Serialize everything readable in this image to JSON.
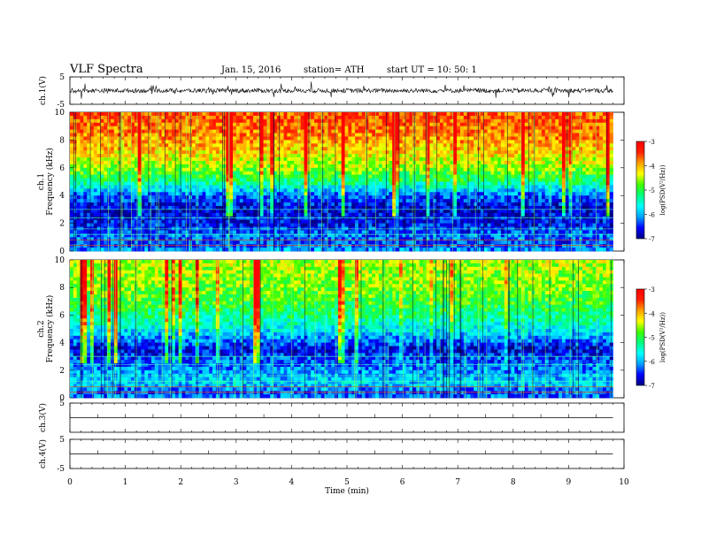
{
  "header": {
    "title": "VLF Spectra",
    "date": "Jan. 15, 2016",
    "station": "station= ATH",
    "start": "start  UT =   10: 50: 1"
  },
  "chart_data": [
    {
      "type": "line",
      "panel": "ch1-waveform",
      "ylabel": "ch.1(V)",
      "ylim": [
        -5,
        5
      ],
      "yticks": [
        -5,
        5
      ],
      "xlim": [
        0,
        10
      ],
      "trace_level": 0,
      "data_end": 9.8
    },
    {
      "type": "heatmap",
      "panel": "ch1-spectrogram",
      "ylabel": "Frequency  (kHz)",
      "ylabel_channel": "ch.1",
      "ylim": [
        0,
        10
      ],
      "yticks": [
        0,
        2,
        4,
        6,
        8,
        10
      ],
      "xlim": [
        0,
        10
      ],
      "data_end": 9.8,
      "profile": [
        {
          "f": 0.0,
          "v": -6.0
        },
        {
          "f": 0.5,
          "v": -6.4
        },
        {
          "f": 1.0,
          "v": -6.2
        },
        {
          "f": 2.0,
          "v": -6.6
        },
        {
          "f": 3.0,
          "v": -6.7
        },
        {
          "f": 4.0,
          "v": -6.3
        },
        {
          "f": 5.0,
          "v": -5.2
        },
        {
          "f": 6.0,
          "v": -4.6
        },
        {
          "f": 7.0,
          "v": -4.2
        },
        {
          "f": 8.0,
          "v": -3.9
        },
        {
          "f": 9.0,
          "v": -3.7
        },
        {
          "f": 10.0,
          "v": -3.6
        }
      ],
      "colorbar": {
        "label": "log(PSD(V²/Hz))",
        "ticks": [
          -3,
          -4,
          -5,
          -6,
          -7
        ],
        "min": -7,
        "max": -3
      }
    },
    {
      "type": "heatmap",
      "panel": "ch2-spectrogram",
      "ylabel": "Frequency  (kHz)",
      "ylabel_channel": "ch.2",
      "ylim": [
        0,
        10
      ],
      "yticks": [
        0,
        2,
        4,
        6,
        8,
        10
      ],
      "xlim": [
        0,
        10
      ],
      "data_end": 9.8,
      "profile": [
        {
          "f": 0.0,
          "v": -6.2
        },
        {
          "f": 0.5,
          "v": -6.3
        },
        {
          "f": 1.0,
          "v": -5.8
        },
        {
          "f": 2.0,
          "v": -6.1
        },
        {
          "f": 3.0,
          "v": -6.4
        },
        {
          "f": 3.5,
          "v": -6.7
        },
        {
          "f": 4.0,
          "v": -6.3
        },
        {
          "f": 5.0,
          "v": -5.7
        },
        {
          "f": 6.0,
          "v": -5.2
        },
        {
          "f": 7.0,
          "v": -4.9
        },
        {
          "f": 8.0,
          "v": -4.7
        },
        {
          "f": 9.0,
          "v": -4.6
        },
        {
          "f": 10.0,
          "v": -4.5
        }
      ],
      "colorbar": {
        "label": "log(PSD(V²/Hz))",
        "ticks": [
          -3,
          -4,
          -5,
          -6,
          -7
        ],
        "min": -7,
        "max": -3
      }
    },
    {
      "type": "line",
      "panel": "ch3-waveform",
      "ylabel": "ch.3(V)",
      "ylim": [
        -5,
        5
      ],
      "yticks": [
        5
      ],
      "xlim": [
        0,
        10
      ],
      "trace_level": 0,
      "data_end": 9.8
    },
    {
      "type": "line",
      "panel": "ch4-waveform",
      "ylabel": "ch.4(V)",
      "ylim": [
        -5,
        5
      ],
      "yticks": [
        -5,
        5
      ],
      "xlim": [
        0,
        10
      ],
      "trace_level": 0,
      "data_end": 9.8
    }
  ],
  "xaxis": {
    "label": "Time  (min)",
    "ticks": [
      0,
      1,
      2,
      3,
      4,
      5,
      6,
      7,
      8,
      9,
      10
    ]
  },
  "colors": {
    "colormap": [
      "#000080",
      "#0000ff",
      "#00a0ff",
      "#00ffff",
      "#00ff80",
      "#40ff00",
      "#ffff00",
      "#ffa000",
      "#ff2000",
      "#ff0000"
    ]
  }
}
